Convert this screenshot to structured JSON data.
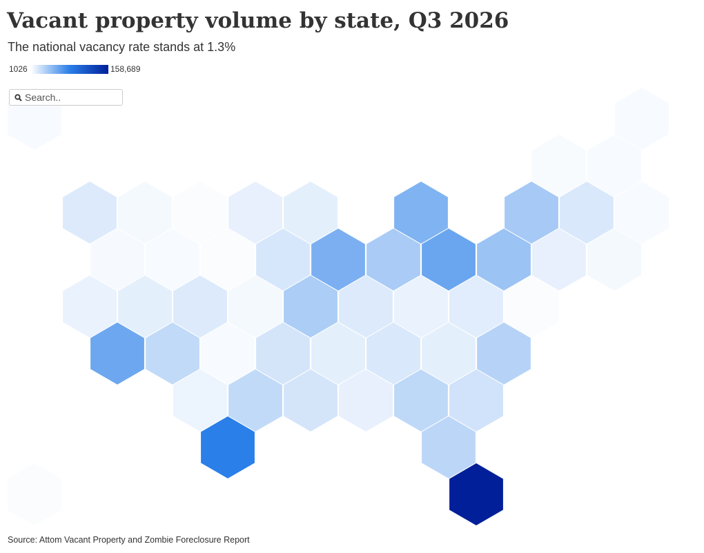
{
  "chart_data": {
    "type": "hexmap",
    "title": "Vacant property volume by state, Q3 2026",
    "subtitle": "The national vacancy rate stands at 1.3%",
    "source": "Source: Attom Vacant Property and Zombie Foreclosure Report",
    "search_placeholder": "Search..",
    "colors": [
      "#ffffff",
      "#2a7fe8",
      "#001f99"
    ],
    "colorlim": [
      1026,
      158689
    ],
    "colorticks": [
      1026,
      {
        "value": 158689,
        "label": "158,689"
      }
    ],
    "values": [
      4000,
      4000,
      3500,
      4000,
      14000,
      5000,
      3000,
      10000,
      11000,
      48000,
      34000,
      15000,
      4000,
      4500,
      4000,
      3000,
      16000,
      50000,
      33000,
      56000,
      38000,
      10000,
      5000,
      9000,
      11000,
      14000,
      5000,
      32000,
      14000,
      9000,
      12000,
      3000,
      55000,
      24000,
      4000,
      17000,
      11000,
      15000,
      11000,
      28000,
      1026,
      8000,
      24000,
      17000,
      10000,
      25000,
      18000,
      80000,
      26000,
      3000,
      158689
    ]
  }
}
